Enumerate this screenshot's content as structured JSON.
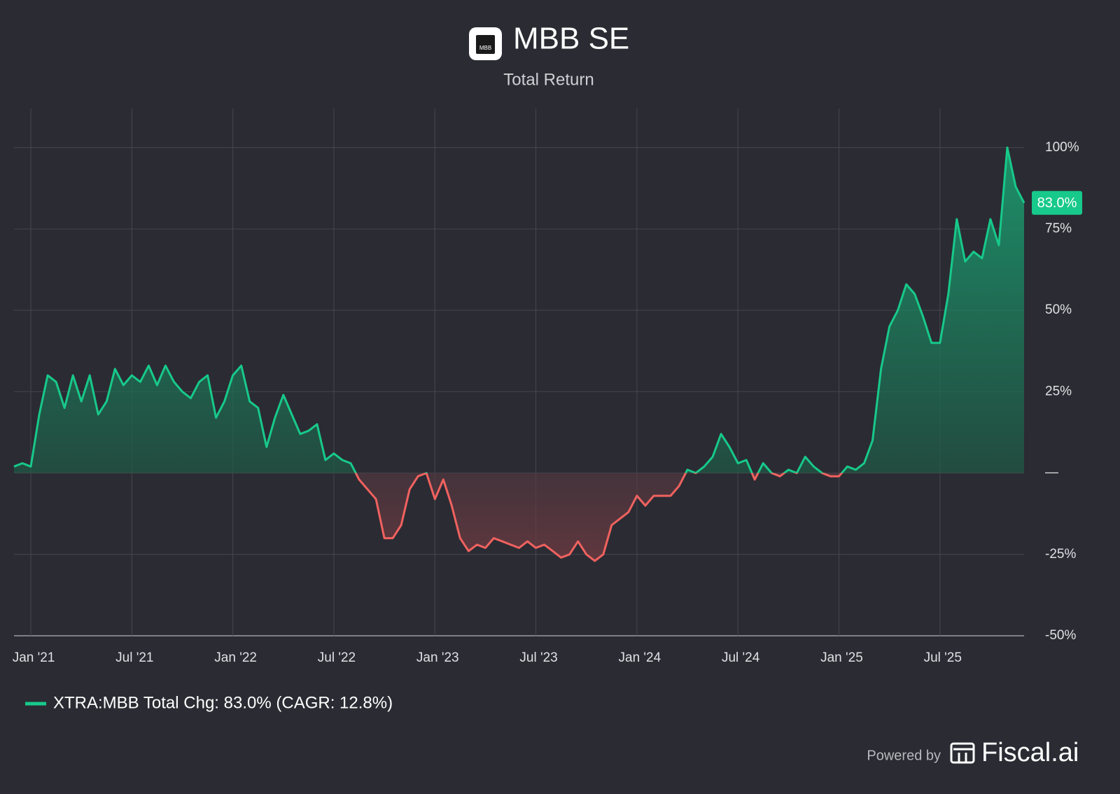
{
  "chart_data": {
    "type": "area-line",
    "title": "MBB SE",
    "subtitle": "Total Return",
    "logo_text": "MBB",
    "categories": [
      null,
      null,
      "Jan '21",
      null,
      null,
      null,
      null,
      null,
      null,
      null,
      null,
      null,
      null,
      null,
      "Jul '21",
      null,
      null,
      null,
      null,
      null,
      null,
      null,
      null,
      null,
      null,
      null,
      "Jan '22",
      null,
      null,
      null,
      null,
      null,
      null,
      null,
      null,
      null,
      null,
      null,
      "Jul '22",
      null,
      null,
      null,
      null,
      null,
      null,
      null,
      null,
      null,
      null,
      null,
      "Jan '23",
      null,
      null,
      null,
      null,
      null,
      null,
      null,
      null,
      null,
      null,
      null,
      "Jul '23",
      null,
      null,
      null,
      null,
      null,
      null,
      null,
      null,
      null,
      null,
      null,
      "Jan '24",
      null,
      null,
      null,
      null,
      null,
      null,
      null,
      null,
      null,
      null,
      null,
      "Jul '24",
      null,
      null,
      null,
      null,
      null,
      null,
      null,
      null,
      null,
      null,
      null,
      "Jan '25",
      null,
      null,
      null,
      null,
      null,
      null,
      null,
      null,
      null,
      null,
      null,
      "Jul '25",
      null,
      null,
      null,
      null,
      null,
      null,
      null,
      null,
      null,
      null
    ],
    "series": [
      {
        "name": "XTRA:MBB Total Chg: 83.0% (CAGR: 12.8%)",
        "color": "#17c98a",
        "negative_color": "#f0625f",
        "end_label": "83.0%",
        "values": [
          2,
          3,
          2,
          18,
          30,
          28,
          20,
          30,
          22,
          30,
          18,
          22,
          32,
          27,
          30,
          28,
          33,
          27,
          33,
          28,
          25,
          23,
          28,
          30,
          17,
          22,
          30,
          33,
          22,
          20,
          8,
          17,
          24,
          18,
          12,
          13,
          15,
          4,
          6,
          4,
          3,
          -2,
          -5,
          -8,
          -20,
          -20,
          -16,
          -5,
          -1,
          0,
          -8,
          -2,
          -10,
          -20,
          -24,
          -22,
          -23,
          -20,
          -21,
          -22,
          -23,
          -21,
          -23,
          -22,
          -24,
          -26,
          -25,
          -21,
          -25,
          -27,
          -25,
          -16,
          -14,
          -12,
          -7,
          -10,
          -7,
          -7,
          -7,
          -4,
          1,
          0,
          2,
          5,
          12,
          8,
          3,
          4,
          -2,
          3,
          0,
          -1,
          1,
          0,
          5,
          2,
          0,
          -1,
          -1,
          2,
          1,
          3,
          10,
          32,
          45,
          50,
          58,
          55,
          48,
          40,
          40,
          55,
          78,
          65,
          68,
          66,
          78,
          70,
          100,
          88,
          83
        ]
      }
    ],
    "ylim": [
      -50,
      112
    ],
    "yticks": [
      {
        "value": -50,
        "label": "-50%"
      },
      {
        "value": -25,
        "label": "-25%"
      },
      {
        "value": 0,
        "label": "—"
      },
      {
        "value": 25,
        "label": "25%"
      },
      {
        "value": 50,
        "label": "50%"
      },
      {
        "value": 75,
        "label": "75%"
      },
      {
        "value": 100,
        "label": "100%"
      }
    ],
    "grid": true,
    "footer": {
      "powered_by": "Powered by",
      "brand": "Fiscal.ai"
    }
  }
}
